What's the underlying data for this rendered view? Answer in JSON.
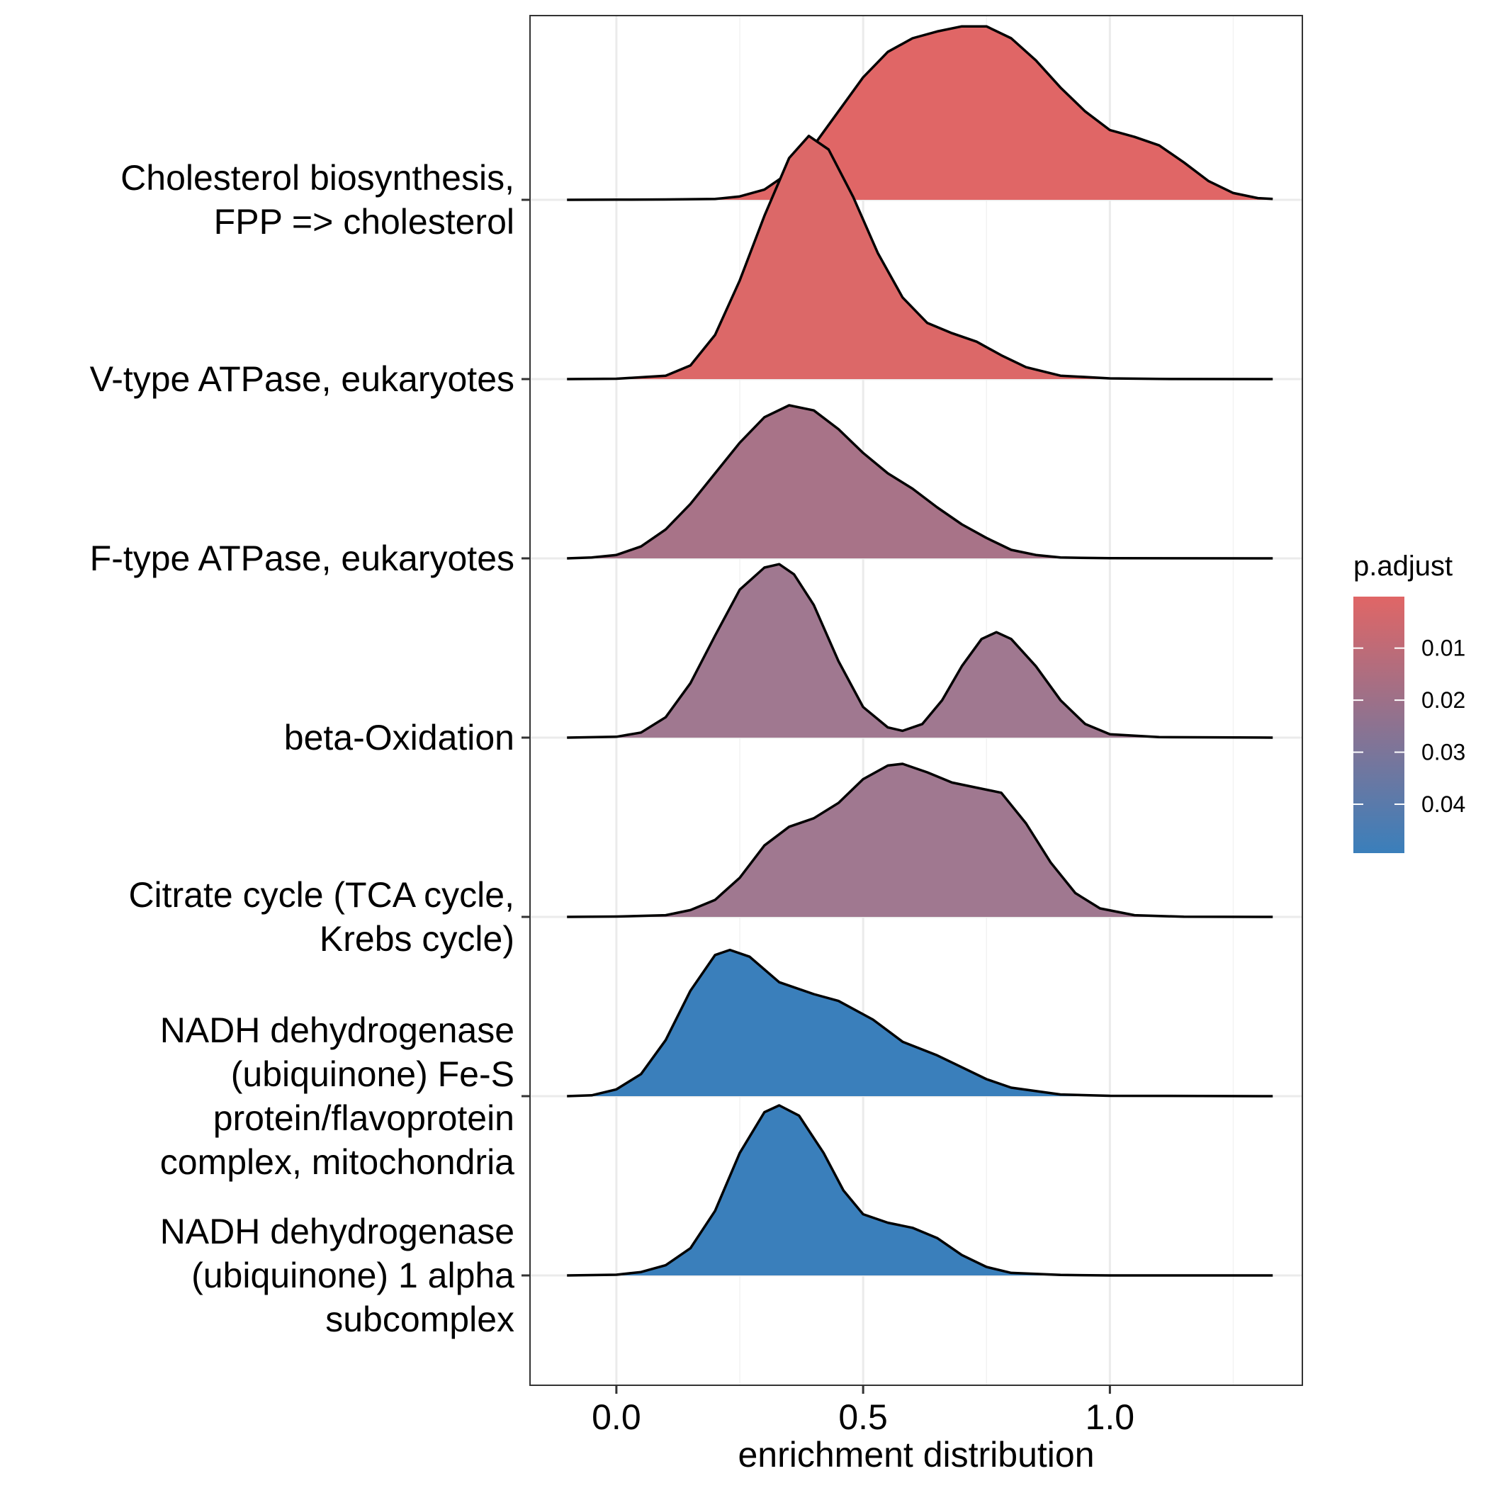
{
  "chart_data": {
    "type": "ridgeline",
    "xlabel": "enrichment distribution",
    "ylabel": "",
    "xlim": [
      -0.175,
      1.39
    ],
    "x_ticks": [
      {
        "value": 0.0,
        "label": "0.0"
      },
      {
        "value": 0.5,
        "label": "0.5"
      },
      {
        "value": 1.0,
        "label": "1.0"
      }
    ],
    "x_range": [
      -0.1,
      1.33
    ],
    "grid": true,
    "legend": {
      "title": "p.adjust",
      "position": "right",
      "domain": [
        0.0001,
        0.0494
      ],
      "color_low": "#e06666",
      "color_high": "#3a7fbb",
      "ticks": [
        {
          "value": 0.01,
          "label": "0.01"
        },
        {
          "value": 0.02,
          "label": "0.02"
        },
        {
          "value": 0.03,
          "label": "0.03"
        },
        {
          "value": 0.04,
          "label": "0.04"
        }
      ]
    },
    "series": [
      {
        "name": "NADH dehydrogenase (ubiquinone) 1 alpha subcomplex",
        "label_lines": [
          "NADH dehydrogenase",
          "(ubiquinone) 1 alpha",
          "subcomplex"
        ],
        "p_adjust": 0.0494,
        "color": "#3a7fbb",
        "density": [
          [
            -0.1,
            0
          ],
          [
            0,
            0.004
          ],
          [
            0.05,
            0.02
          ],
          [
            0.1,
            0.06
          ],
          [
            0.15,
            0.16
          ],
          [
            0.2,
            0.38
          ],
          [
            0.25,
            0.72
          ],
          [
            0.3,
            0.96
          ],
          [
            0.33,
            1.0
          ],
          [
            0.37,
            0.94
          ],
          [
            0.42,
            0.72
          ],
          [
            0.46,
            0.5
          ],
          [
            0.5,
            0.36
          ],
          [
            0.55,
            0.31
          ],
          [
            0.6,
            0.28
          ],
          [
            0.65,
            0.22
          ],
          [
            0.7,
            0.12
          ],
          [
            0.75,
            0.05
          ],
          [
            0.8,
            0.015
          ],
          [
            0.9,
            0.003
          ],
          [
            1.0,
            0
          ],
          [
            1.33,
            0
          ]
        ]
      },
      {
        "name": "NADH dehydrogenase (ubiquinone) Fe-S protein/flavoprotein complex, mitochondria",
        "label_lines": [
          "NADH dehydrogenase",
          "(ubiquinone) Fe-S",
          "protein/flavoprotein",
          "complex, mitochondria"
        ],
        "p_adjust": 0.0494,
        "color": "#3a7fbb",
        "density": [
          [
            -0.1,
            0
          ],
          [
            -0.05,
            0.005
          ],
          [
            0,
            0.04
          ],
          [
            0.05,
            0.13
          ],
          [
            0.1,
            0.33
          ],
          [
            0.15,
            0.62
          ],
          [
            0.2,
            0.83
          ],
          [
            0.23,
            0.86
          ],
          [
            0.27,
            0.82
          ],
          [
            0.33,
            0.67
          ],
          [
            0.4,
            0.6
          ],
          [
            0.45,
            0.56
          ],
          [
            0.52,
            0.45
          ],
          [
            0.58,
            0.32
          ],
          [
            0.65,
            0.24
          ],
          [
            0.7,
            0.17
          ],
          [
            0.75,
            0.1
          ],
          [
            0.8,
            0.05
          ],
          [
            0.9,
            0.01
          ],
          [
            1.0,
            0.002
          ],
          [
            1.33,
            0
          ]
        ]
      },
      {
        "name": "Citrate cycle (TCA cycle, Krebs cycle)",
        "label_lines": [
          "Citrate cycle (TCA cycle,",
          "Krebs cycle)"
        ],
        "p_adjust": 0.031,
        "color": "#a07890",
        "density": [
          [
            -0.1,
            0
          ],
          [
            0,
            0.002
          ],
          [
            0.1,
            0.01
          ],
          [
            0.15,
            0.04
          ],
          [
            0.2,
            0.1
          ],
          [
            0.25,
            0.23
          ],
          [
            0.3,
            0.42
          ],
          [
            0.35,
            0.53
          ],
          [
            0.4,
            0.58
          ],
          [
            0.45,
            0.67
          ],
          [
            0.5,
            0.81
          ],
          [
            0.55,
            0.89
          ],
          [
            0.58,
            0.9
          ],
          [
            0.63,
            0.85
          ],
          [
            0.68,
            0.79
          ],
          [
            0.73,
            0.76
          ],
          [
            0.78,
            0.73
          ],
          [
            0.83,
            0.55
          ],
          [
            0.88,
            0.32
          ],
          [
            0.93,
            0.14
          ],
          [
            0.98,
            0.05
          ],
          [
            1.05,
            0.01
          ],
          [
            1.15,
            0.001
          ],
          [
            1.33,
            0
          ]
        ]
      },
      {
        "name": "beta-Oxidation",
        "label_lines": [
          "beta-Oxidation"
        ],
        "p_adjust": 0.031,
        "color": "#a07890",
        "density": [
          [
            -0.1,
            0
          ],
          [
            0,
            0.005
          ],
          [
            0.05,
            0.03
          ],
          [
            0.1,
            0.12
          ],
          [
            0.15,
            0.32
          ],
          [
            0.2,
            0.6
          ],
          [
            0.25,
            0.87
          ],
          [
            0.3,
            1.0
          ],
          [
            0.33,
            1.02
          ],
          [
            0.36,
            0.96
          ],
          [
            0.4,
            0.78
          ],
          [
            0.45,
            0.45
          ],
          [
            0.5,
            0.18
          ],
          [
            0.55,
            0.06
          ],
          [
            0.58,
            0.04
          ],
          [
            0.62,
            0.08
          ],
          [
            0.66,
            0.22
          ],
          [
            0.7,
            0.42
          ],
          [
            0.74,
            0.58
          ],
          [
            0.77,
            0.62
          ],
          [
            0.8,
            0.58
          ],
          [
            0.85,
            0.42
          ],
          [
            0.9,
            0.22
          ],
          [
            0.95,
            0.08
          ],
          [
            1.0,
            0.02
          ],
          [
            1.1,
            0.003
          ],
          [
            1.33,
            0
          ]
        ]
      },
      {
        "name": "F-type ATPase, eukaryotes",
        "label_lines": [
          "F-type ATPase, eukaryotes"
        ],
        "p_adjust": 0.0255,
        "color": "#a87388",
        "density": [
          [
            -0.1,
            0
          ],
          [
            -0.05,
            0.005
          ],
          [
            0,
            0.02
          ],
          [
            0.05,
            0.07
          ],
          [
            0.1,
            0.17
          ],
          [
            0.15,
            0.32
          ],
          [
            0.2,
            0.5
          ],
          [
            0.25,
            0.68
          ],
          [
            0.3,
            0.83
          ],
          [
            0.35,
            0.9
          ],
          [
            0.4,
            0.87
          ],
          [
            0.45,
            0.76
          ],
          [
            0.5,
            0.62
          ],
          [
            0.55,
            0.5
          ],
          [
            0.6,
            0.41
          ],
          [
            0.65,
            0.3
          ],
          [
            0.7,
            0.2
          ],
          [
            0.75,
            0.12
          ],
          [
            0.8,
            0.05
          ],
          [
            0.85,
            0.02
          ],
          [
            0.9,
            0.005
          ],
          [
            1.0,
            0.001
          ],
          [
            1.33,
            0
          ]
        ]
      },
      {
        "name": "V-type ATPase, eukaryotes",
        "label_lines": [
          "V-type ATPase, eukaryotes"
        ],
        "p_adjust": 0.0015,
        "color": "#dc6868",
        "density": [
          [
            -0.1,
            0
          ],
          [
            0,
            0.002
          ],
          [
            0.1,
            0.02
          ],
          [
            0.15,
            0.08
          ],
          [
            0.2,
            0.26
          ],
          [
            0.25,
            0.58
          ],
          [
            0.3,
            0.96
          ],
          [
            0.35,
            1.3
          ],
          [
            0.39,
            1.43
          ],
          [
            0.43,
            1.35
          ],
          [
            0.48,
            1.07
          ],
          [
            0.53,
            0.74
          ],
          [
            0.58,
            0.48
          ],
          [
            0.63,
            0.33
          ],
          [
            0.68,
            0.27
          ],
          [
            0.73,
            0.22
          ],
          [
            0.78,
            0.14
          ],
          [
            0.83,
            0.07
          ],
          [
            0.9,
            0.02
          ],
          [
            1.0,
            0.004
          ],
          [
            1.1,
            0.001
          ],
          [
            1.33,
            0
          ]
        ]
      },
      {
        "name": "Cholesterol biosynthesis, FPP => cholesterol",
        "label_lines": [
          "Cholesterol biosynthesis,",
          "FPP => cholesterol"
        ],
        "p_adjust": 0.0001,
        "color": "#e06666",
        "density": [
          [
            -0.1,
            0
          ],
          [
            0,
            0.001
          ],
          [
            0.1,
            0.002
          ],
          [
            0.2,
            0.005
          ],
          [
            0.25,
            0.02
          ],
          [
            0.3,
            0.06
          ],
          [
            0.35,
            0.16
          ],
          [
            0.4,
            0.32
          ],
          [
            0.45,
            0.52
          ],
          [
            0.5,
            0.72
          ],
          [
            0.55,
            0.87
          ],
          [
            0.6,
            0.95
          ],
          [
            0.65,
            0.99
          ],
          [
            0.7,
            1.02
          ],
          [
            0.75,
            1.02
          ],
          [
            0.8,
            0.95
          ],
          [
            0.85,
            0.82
          ],
          [
            0.9,
            0.66
          ],
          [
            0.95,
            0.52
          ],
          [
            1.0,
            0.41
          ],
          [
            1.05,
            0.37
          ],
          [
            1.1,
            0.32
          ],
          [
            1.15,
            0.22
          ],
          [
            1.2,
            0.11
          ],
          [
            1.25,
            0.04
          ],
          [
            1.3,
            0.01
          ],
          [
            1.33,
            0.005
          ]
        ]
      }
    ]
  }
}
